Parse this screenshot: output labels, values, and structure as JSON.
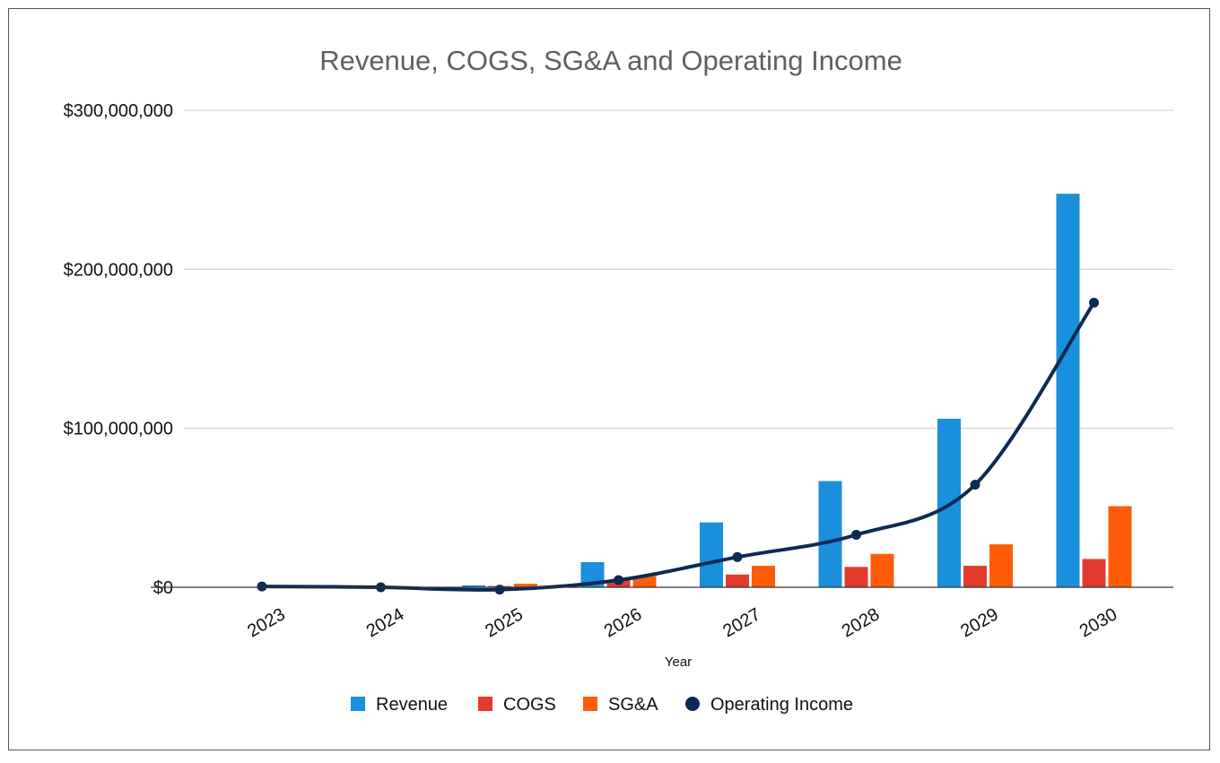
{
  "chart_data": {
    "type": "bar",
    "title": "Revenue, COGS, SG&A and Operating Income",
    "xlabel": "Year",
    "ylabel": "",
    "categories": [
      "2023",
      "2024",
      "2025",
      "2026",
      "2027",
      "2028",
      "2029",
      "2030"
    ],
    "ylim": [
      0,
      300000000
    ],
    "yticks": [
      0,
      100000000,
      200000000,
      300000000
    ],
    "ytick_labels": [
      "$0",
      "$100,000,000",
      "$200,000,000",
      "$300,000,000"
    ],
    "grid": true,
    "legend_position": "bottom",
    "series": [
      {
        "name": "Revenue",
        "type": "bar",
        "color": "#1a8fdb",
        "values": [
          0,
          0,
          1200000,
          15800000,
          40800000,
          66800000,
          106000000,
          247500000
        ]
      },
      {
        "name": "COGS",
        "type": "bar",
        "color": "#e33a2e",
        "values": [
          0,
          0,
          800000,
          4500000,
          8000000,
          12800000,
          13500000,
          17800000
        ]
      },
      {
        "name": "SG&A",
        "type": "bar",
        "color": "#ff5c0a",
        "values": [
          0,
          0,
          2200000,
          7000000,
          13500000,
          21000000,
          27000000,
          51000000
        ]
      },
      {
        "name": "Operating Income",
        "type": "line",
        "color": "#0d2a52",
        "values": [
          500000,
          0,
          -1500000,
          4500000,
          19000000,
          33000000,
          64500000,
          179000000
        ]
      }
    ]
  }
}
